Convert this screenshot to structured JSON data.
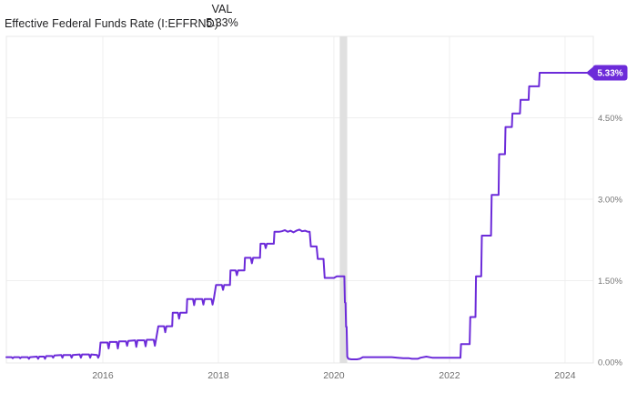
{
  "header": {
    "title": "Effective Federal Funds Rate (I:EFFRND)",
    "val_label": "VAL",
    "val_value": "5.33%"
  },
  "chart_data": {
    "type": "line",
    "title": "Effective Federal Funds Rate (I:EFFRND)",
    "series_name": "Effective Federal Funds Rate",
    "unit": "%",
    "xlim": [
      2014.33,
      2024.49
    ],
    "ylim": [
      0,
      6
    ],
    "x_ticks": [
      {
        "value": 2016,
        "label": "2016"
      },
      {
        "value": 2018,
        "label": "2018"
      },
      {
        "value": 2020,
        "label": "2020"
      },
      {
        "value": 2022,
        "label": "2022"
      },
      {
        "value": 2024,
        "label": "2024"
      }
    ],
    "y_ticks": [
      {
        "value": 0,
        "label": "0.00%"
      },
      {
        "value": 1.5,
        "label": "1.50%"
      },
      {
        "value": 3,
        "label": "3.00%"
      },
      {
        "value": 4.5,
        "label": "4.50%"
      }
    ],
    "grid": true,
    "legend_position": "none",
    "recession_band": {
      "x_start": 2020.1,
      "x_end": 2020.23
    },
    "last_value_label": "5.33%",
    "colors": {
      "line": "#6C2BD9",
      "badge_bg": "#6C2BD9",
      "badge_text": "#ffffff",
      "band": "#e0e0e0",
      "grid": "#efefef",
      "border": "#e9e9e9",
      "y_tick_text": "#757575",
      "x_tick_text": "#6d6d6d"
    },
    "points": [
      [
        2014.33,
        0.09
      ],
      [
        2014.42,
        0.09
      ],
      [
        2014.44,
        0.07
      ],
      [
        2014.46,
        0.09
      ],
      [
        2014.55,
        0.09
      ],
      [
        2014.57,
        0.07
      ],
      [
        2014.59,
        0.09
      ],
      [
        2014.7,
        0.09
      ],
      [
        2014.72,
        0.06
      ],
      [
        2014.74,
        0.09
      ],
      [
        2014.86,
        0.1
      ],
      [
        2014.88,
        0.06
      ],
      [
        2014.9,
        0.1
      ],
      [
        2014.98,
        0.1
      ],
      [
        2015.0,
        0.06
      ],
      [
        2015.02,
        0.11
      ],
      [
        2015.12,
        0.11
      ],
      [
        2015.14,
        0.08
      ],
      [
        2015.16,
        0.12
      ],
      [
        2015.28,
        0.13
      ],
      [
        2015.3,
        0.08
      ],
      [
        2015.32,
        0.13
      ],
      [
        2015.44,
        0.13
      ],
      [
        2015.46,
        0.08
      ],
      [
        2015.48,
        0.13
      ],
      [
        2015.6,
        0.14
      ],
      [
        2015.62,
        0.08
      ],
      [
        2015.64,
        0.14
      ],
      [
        2015.76,
        0.14
      ],
      [
        2015.78,
        0.08
      ],
      [
        2015.8,
        0.14
      ],
      [
        2015.9,
        0.13
      ],
      [
        2015.92,
        0.08
      ],
      [
        2015.94,
        0.13
      ],
      [
        2015.96,
        0.36
      ],
      [
        2016.08,
        0.36
      ],
      [
        2016.1,
        0.25
      ],
      [
        2016.12,
        0.37
      ],
      [
        2016.24,
        0.37
      ],
      [
        2016.26,
        0.25
      ],
      [
        2016.28,
        0.38
      ],
      [
        2016.4,
        0.38
      ],
      [
        2016.42,
        0.3
      ],
      [
        2016.44,
        0.39
      ],
      [
        2016.56,
        0.4
      ],
      [
        2016.58,
        0.28
      ],
      [
        2016.6,
        0.4
      ],
      [
        2016.72,
        0.4
      ],
      [
        2016.74,
        0.29
      ],
      [
        2016.76,
        0.41
      ],
      [
        2016.88,
        0.41
      ],
      [
        2016.9,
        0.3
      ],
      [
        2016.92,
        0.41
      ],
      [
        2016.96,
        0.66
      ],
      [
        2017.06,
        0.66
      ],
      [
        2017.08,
        0.55
      ],
      [
        2017.1,
        0.66
      ],
      [
        2017.2,
        0.66
      ],
      [
        2017.21,
        0.91
      ],
      [
        2017.3,
        0.91
      ],
      [
        2017.32,
        0.8
      ],
      [
        2017.34,
        0.91
      ],
      [
        2017.45,
        0.91
      ],
      [
        2017.46,
        1.16
      ],
      [
        2017.56,
        1.16
      ],
      [
        2017.58,
        1.05
      ],
      [
        2017.6,
        1.16
      ],
      [
        2017.72,
        1.16
      ],
      [
        2017.74,
        1.06
      ],
      [
        2017.76,
        1.16
      ],
      [
        2017.88,
        1.16
      ],
      [
        2017.9,
        1.06
      ],
      [
        2017.92,
        1.16
      ],
      [
        2017.96,
        1.42
      ],
      [
        2018.06,
        1.42
      ],
      [
        2018.08,
        1.33
      ],
      [
        2018.1,
        1.42
      ],
      [
        2018.2,
        1.42
      ],
      [
        2018.21,
        1.69
      ],
      [
        2018.3,
        1.69
      ],
      [
        2018.32,
        1.6
      ],
      [
        2018.34,
        1.69
      ],
      [
        2018.45,
        1.69
      ],
      [
        2018.46,
        1.92
      ],
      [
        2018.56,
        1.92
      ],
      [
        2018.58,
        1.82
      ],
      [
        2018.6,
        1.92
      ],
      [
        2018.72,
        1.92
      ],
      [
        2018.73,
        2.18
      ],
      [
        2018.8,
        2.18
      ],
      [
        2018.82,
        2.1
      ],
      [
        2018.84,
        2.18
      ],
      [
        2018.96,
        2.18
      ],
      [
        2018.97,
        2.4
      ],
      [
        2019.05,
        2.4
      ],
      [
        2019.1,
        2.41
      ],
      [
        2019.15,
        2.43
      ],
      [
        2019.2,
        2.4
      ],
      [
        2019.25,
        2.42
      ],
      [
        2019.3,
        2.39
      ],
      [
        2019.35,
        2.42
      ],
      [
        2019.4,
        2.44
      ],
      [
        2019.45,
        2.41
      ],
      [
        2019.5,
        2.42
      ],
      [
        2019.55,
        2.4
      ],
      [
        2019.58,
        2.4
      ],
      [
        2019.6,
        2.13
      ],
      [
        2019.7,
        2.13
      ],
      [
        2019.72,
        1.9
      ],
      [
        2019.82,
        1.9
      ],
      [
        2019.84,
        1.55
      ],
      [
        2019.95,
        1.55
      ],
      [
        2020.0,
        1.55
      ],
      [
        2020.05,
        1.58
      ],
      [
        2020.15,
        1.58
      ],
      [
        2020.18,
        1.58
      ],
      [
        2020.19,
        1.1
      ],
      [
        2020.2,
        1.09
      ],
      [
        2020.21,
        0.65
      ],
      [
        2020.22,
        0.65
      ],
      [
        2020.23,
        0.1
      ],
      [
        2020.25,
        0.06
      ],
      [
        2020.3,
        0.05
      ],
      [
        2020.4,
        0.05
      ],
      [
        2020.45,
        0.06
      ],
      [
        2020.5,
        0.09
      ],
      [
        2020.6,
        0.09
      ],
      [
        2020.7,
        0.09
      ],
      [
        2020.8,
        0.09
      ],
      [
        2020.9,
        0.09
      ],
      [
        2021.0,
        0.09
      ],
      [
        2021.1,
        0.08
      ],
      [
        2021.2,
        0.07
      ],
      [
        2021.3,
        0.07
      ],
      [
        2021.35,
        0.06
      ],
      [
        2021.45,
        0.06
      ],
      [
        2021.5,
        0.08
      ],
      [
        2021.6,
        0.1
      ],
      [
        2021.7,
        0.08
      ],
      [
        2021.8,
        0.08
      ],
      [
        2021.9,
        0.08
      ],
      [
        2022.0,
        0.08
      ],
      [
        2022.1,
        0.08
      ],
      [
        2022.19,
        0.08
      ],
      [
        2022.2,
        0.33
      ],
      [
        2022.35,
        0.33
      ],
      [
        2022.36,
        0.83
      ],
      [
        2022.45,
        0.83
      ],
      [
        2022.46,
        1.58
      ],
      [
        2022.55,
        1.58
      ],
      [
        2022.56,
        2.33
      ],
      [
        2022.72,
        2.33
      ],
      [
        2022.73,
        3.08
      ],
      [
        2022.85,
        3.08
      ],
      [
        2022.86,
        3.83
      ],
      [
        2022.96,
        3.83
      ],
      [
        2022.97,
        4.33
      ],
      [
        2023.08,
        4.33
      ],
      [
        2023.09,
        4.58
      ],
      [
        2023.22,
        4.58
      ],
      [
        2023.23,
        4.83
      ],
      [
        2023.37,
        4.83
      ],
      [
        2023.38,
        5.08
      ],
      [
        2023.55,
        5.08
      ],
      [
        2023.56,
        5.33
      ],
      [
        2024.0,
        5.33
      ],
      [
        2024.42,
        5.33
      ]
    ]
  }
}
